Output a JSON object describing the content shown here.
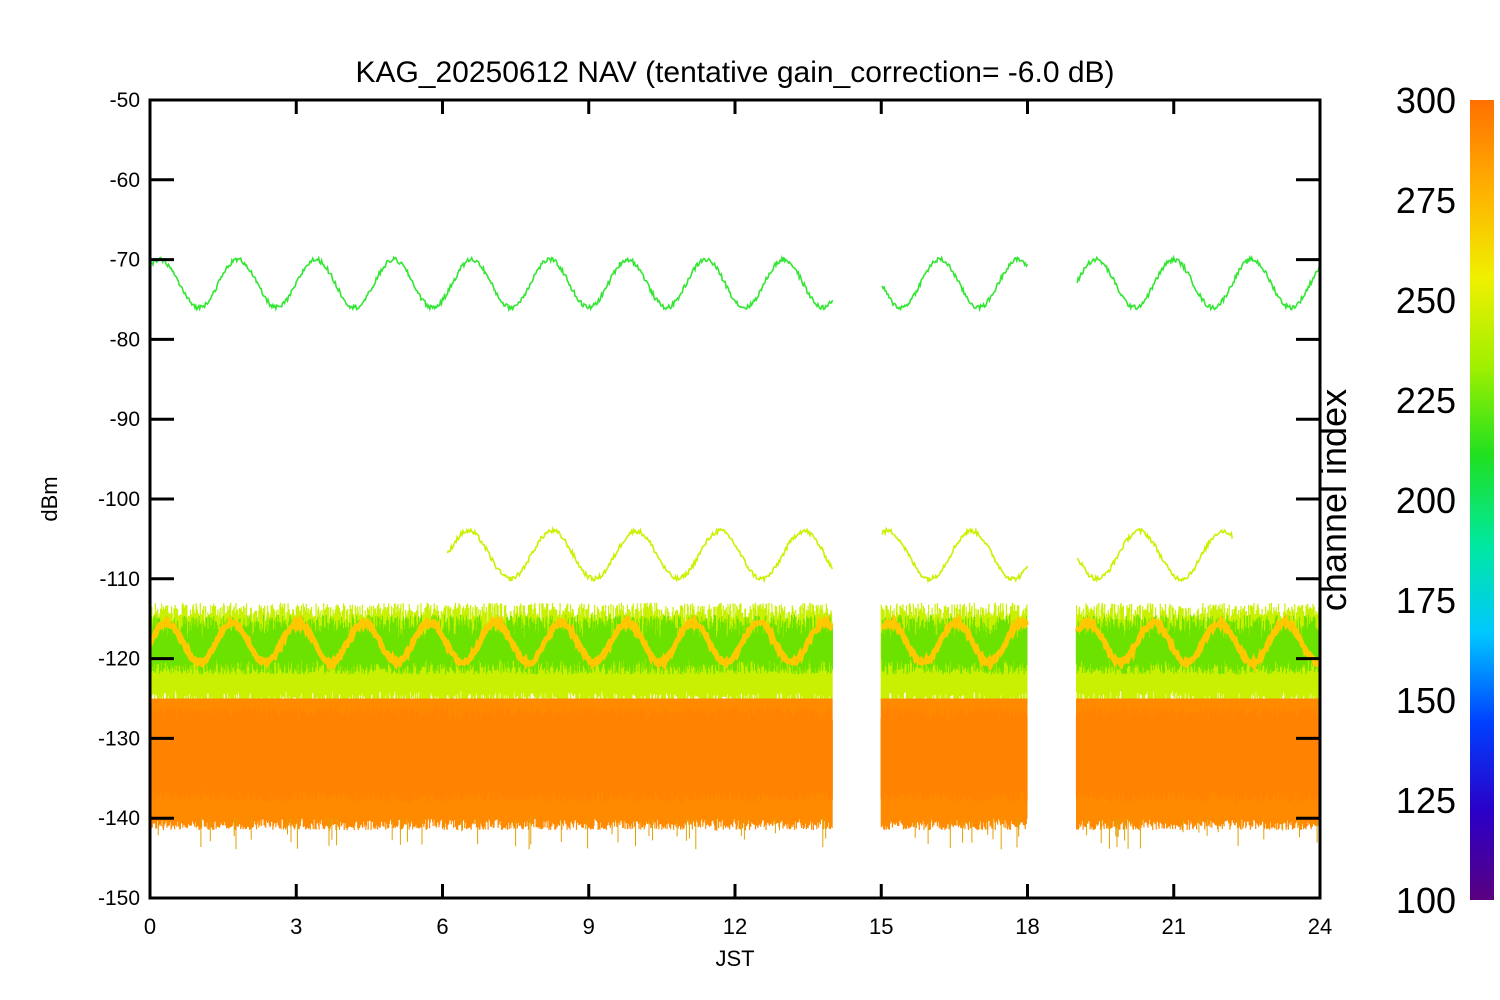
{
  "chart_data": {
    "type": "line",
    "title": "KAG_20250612 NAV (tentative gain_correction= -6.0 dB)",
    "xlabel": "JST",
    "ylabel": "dBm",
    "xlim": [
      0,
      24
    ],
    "ylim": [
      -150,
      -50
    ],
    "x_ticks": [
      "0",
      "3",
      "6",
      "9",
      "12",
      "15",
      "18",
      "21",
      "24"
    ],
    "y_ticks": [
      "-50",
      "-60",
      "-70",
      "-80",
      "-90",
      "-100",
      "-110",
      "-120",
      "-130",
      "-140",
      "-150"
    ],
    "data_gaps_jst": [
      [
        14.0,
        15.0
      ],
      [
        18.0,
        19.0
      ]
    ],
    "colorbar": {
      "label": "channel index",
      "range": [
        100,
        300
      ],
      "ticks": [
        "300",
        "275",
        "250",
        "225",
        "200",
        "175",
        "150",
        "125",
        "100"
      ],
      "colormap": [
        "#5a0080",
        "#2a00c8",
        "#0040ff",
        "#00c8ff",
        "#00e8a0",
        "#20e020",
        "#a0f000",
        "#f0f000",
        "#ffb000",
        "#ff7000"
      ]
    },
    "series": [
      {
        "channel_index": 240,
        "color": "#33e633",
        "x_range": [
          0,
          24
        ],
        "sinusoid": {
          "center_dbm": -73,
          "amplitude_db": 3,
          "period_hours": 1.6,
          "phase_hours": -0.2
        }
      },
      {
        "channel_index": 262,
        "color": "#ccf000",
        "x_range": [
          6.1,
          22.2
        ],
        "sinusoid": {
          "center_dbm": -107,
          "amplitude_db": 3,
          "period_hours": 1.72,
          "phase_hours": 6.1
        }
      },
      {
        "channel_index": 282,
        "color": "#ffc800",
        "x_range": [
          0,
          24
        ],
        "sinusoid": {
          "center_dbm": -118,
          "amplitude_db": 2.5,
          "period_hours": 1.35,
          "phase_hours": 0
        }
      },
      {
        "channel_index": 290,
        "color": "#ff8a00",
        "type": "noise_band",
        "x_range": [
          0,
          24
        ],
        "band_dbm": {
          "top": -115,
          "bottom": -140,
          "dense_top": -125,
          "dense_bottom": -137
        }
      }
    ]
  }
}
